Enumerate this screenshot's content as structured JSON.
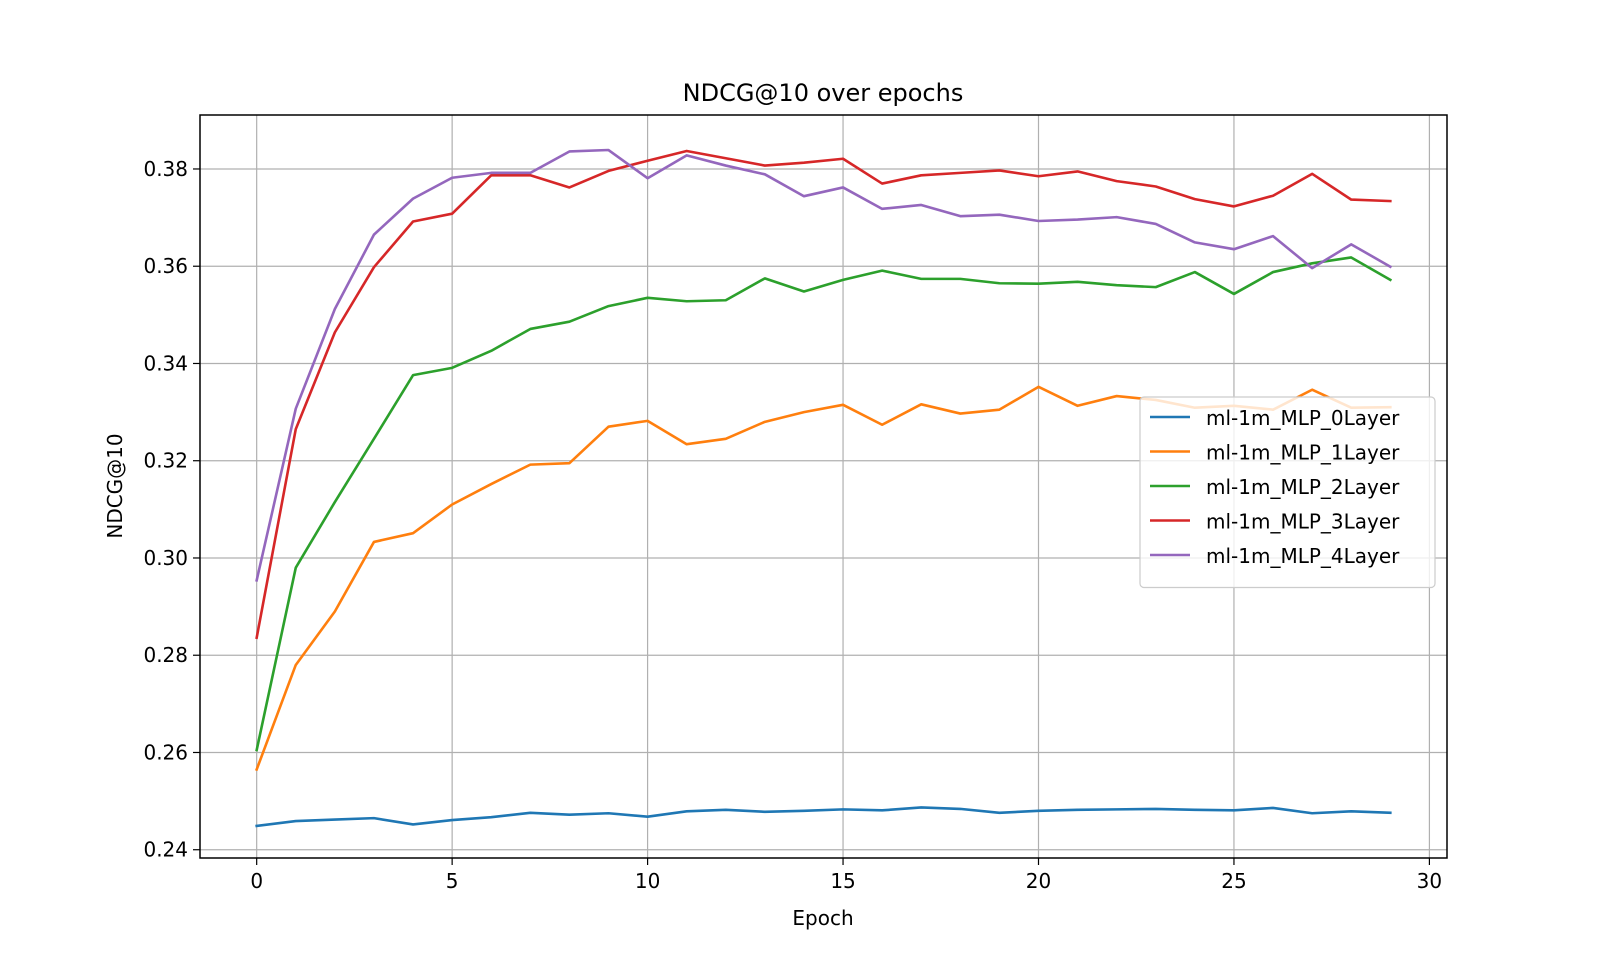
{
  "chart_data": {
    "type": "line",
    "title": "NDCG@10 over epochs",
    "xlabel": "Epoch",
    "ylabel": "NDCG@10",
    "xlim": [
      -1.45,
      30.45
    ],
    "ylim": [
      0.2383,
      0.3911
    ],
    "xticks": [
      0,
      5,
      10,
      15,
      20,
      25,
      30
    ],
    "yticks": [
      0.24,
      0.26,
      0.28,
      0.3,
      0.32,
      0.34,
      0.36,
      0.38
    ],
    "xtick_labels": [
      "0",
      "5",
      "10",
      "15",
      "20",
      "25",
      "30"
    ],
    "ytick_labels": [
      "0.24",
      "0.26",
      "0.28",
      "0.30",
      "0.32",
      "0.34",
      "0.36",
      "0.38"
    ],
    "grid": true,
    "legend_position": "center-right",
    "x": [
      0,
      1,
      2,
      3,
      4,
      5,
      6,
      7,
      8,
      9,
      10,
      11,
      12,
      13,
      14,
      15,
      16,
      17,
      18,
      19,
      20,
      21,
      22,
      23,
      24,
      25,
      26,
      27,
      28,
      29
    ],
    "series": [
      {
        "name": "ml-1m_MLP_0Layer",
        "color": "#1f77b4",
        "values": [
          0.2449,
          0.2459,
          0.2462,
          0.2465,
          0.2452,
          0.2461,
          0.2467,
          0.2476,
          0.2472,
          0.2475,
          0.2468,
          0.2479,
          0.2482,
          0.2478,
          0.248,
          0.2483,
          0.2481,
          0.2487,
          0.2484,
          0.2476,
          0.248,
          0.2482,
          0.2483,
          0.2484,
          0.2482,
          0.2481,
          0.2486,
          0.2475,
          0.2479,
          0.2476
        ]
      },
      {
        "name": "ml-1m_MLP_1Layer",
        "color": "#ff7f0e",
        "values": [
          0.2565,
          0.278,
          0.289,
          0.3033,
          0.3051,
          0.311,
          0.3152,
          0.3192,
          0.3195,
          0.327,
          0.3282,
          0.3234,
          0.3245,
          0.328,
          0.33,
          0.3315,
          0.3274,
          0.3316,
          0.3297,
          0.3305,
          0.3352,
          0.3313,
          0.3333,
          0.3325,
          0.3309,
          0.3313,
          0.3305,
          0.3346,
          0.3309,
          0.331
        ]
      },
      {
        "name": "ml-1m_MLP_2Layer",
        "color": "#2ca02c",
        "values": [
          0.2605,
          0.298,
          0.3115,
          0.3245,
          0.3376,
          0.3391,
          0.3426,
          0.3471,
          0.3486,
          0.3518,
          0.3535,
          0.3528,
          0.353,
          0.3575,
          0.3548,
          0.3572,
          0.3591,
          0.3574,
          0.3574,
          0.3565,
          0.3564,
          0.3568,
          0.3561,
          0.3557,
          0.3588,
          0.3543,
          0.3588,
          0.3606,
          0.3618,
          0.3572
        ]
      },
      {
        "name": "ml-1m_MLP_3Layer",
        "color": "#d62728",
        "values": [
          0.2836,
          0.3265,
          0.3464,
          0.3598,
          0.3692,
          0.3708,
          0.3787,
          0.3787,
          0.3762,
          0.3796,
          0.3817,
          0.3837,
          0.3822,
          0.3807,
          0.3813,
          0.3821,
          0.377,
          0.3787,
          0.3792,
          0.3797,
          0.3785,
          0.3795,
          0.3775,
          0.3764,
          0.3738,
          0.3723,
          0.3745,
          0.379,
          0.3737,
          0.3734
        ]
      },
      {
        "name": "ml-1m_MLP_4Layer",
        "color": "#9467bd",
        "values": [
          0.2954,
          0.3307,
          0.3512,
          0.3665,
          0.3739,
          0.3782,
          0.3792,
          0.3792,
          0.3836,
          0.3839,
          0.3781,
          0.3828,
          0.3807,
          0.3789,
          0.3744,
          0.3762,
          0.3718,
          0.3726,
          0.3703,
          0.3706,
          0.3693,
          0.3696,
          0.3701,
          0.3687,
          0.3649,
          0.3635,
          0.3662,
          0.3596,
          0.3645,
          0.3599
        ]
      }
    ]
  }
}
